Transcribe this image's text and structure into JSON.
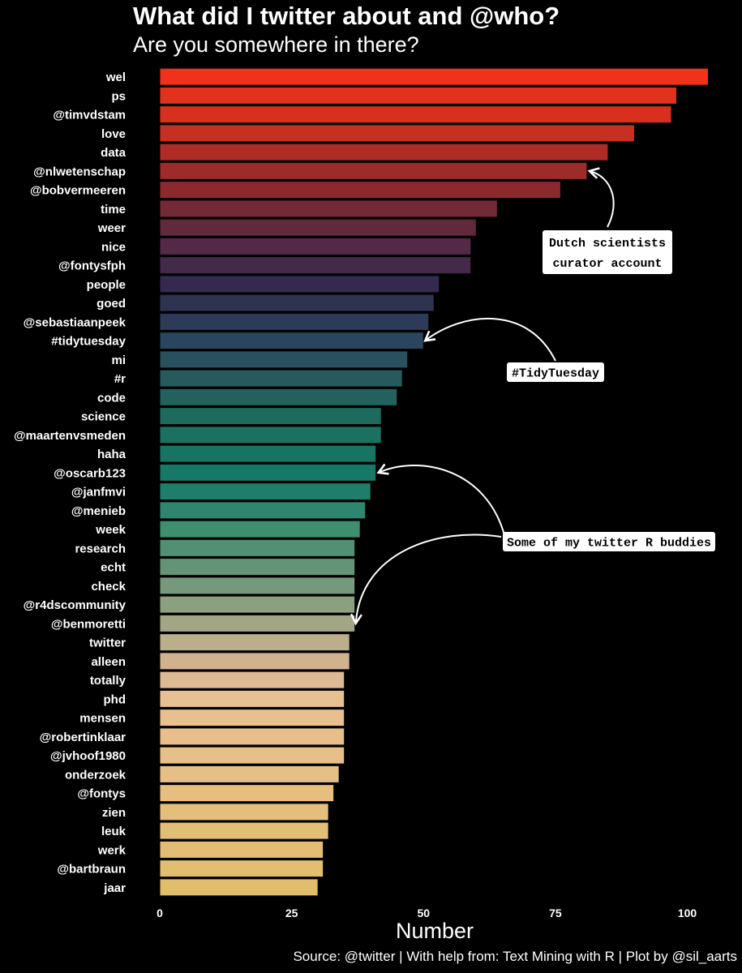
{
  "title": "What did I twitter about and @who?",
  "subtitle": "Are you somewhere in there?",
  "caption": "Source: @twitter | With help from: Text Mining with R | Plot by @sil_aarts",
  "chart_data": {
    "type": "bar",
    "orientation": "horizontal",
    "xlabel": "Number",
    "ylabel": "",
    "xlim": [
      0,
      104
    ],
    "xticks": [
      0,
      25,
      50,
      75,
      100
    ],
    "grid": false,
    "legend": "none",
    "background": "#000000",
    "categories": [
      "wel",
      "ps",
      "@timvdstam",
      "love",
      "data",
      "@nlwetenschap",
      "@bobvermeeren",
      "time",
      "weer",
      "nice",
      "@fontysfph",
      "people",
      "goed",
      "@sebastiaanpeek",
      "#tidytuesday",
      "mi",
      "#r",
      "code",
      "science",
      "@maartenvsmeden",
      "haha",
      "@oscarb123",
      "@janfmvi",
      "@menieb",
      "week",
      "research",
      "echt",
      "check",
      "@r4dscommunity",
      "@benmoretti",
      "twitter",
      "alleen",
      "totally",
      "phd",
      "mensen",
      "@robertinklaar",
      "@jvhoof1980",
      "onderzoek",
      "@fontys",
      "zien",
      "leuk",
      "werk",
      "@bartbraun",
      "jaar"
    ],
    "values": [
      104,
      98,
      97,
      90,
      85,
      81,
      76,
      64,
      60,
      59,
      59,
      53,
      52,
      51,
      50,
      47,
      46,
      45,
      42,
      42,
      41,
      41,
      40,
      39,
      38,
      37,
      37,
      37,
      37,
      37,
      36,
      36,
      35,
      35,
      35,
      35,
      35,
      34,
      33,
      32,
      32,
      31,
      31,
      30
    ],
    "colors": [
      "#F0321A",
      "#E2311C",
      "#D9301D",
      "#C62F22",
      "#AF2C26",
      "#9D2B2A",
      "#8A2A2E",
      "#732A36",
      "#60293C",
      "#542947",
      "#442A4A",
      "#342A50",
      "#2F3352",
      "#2C3B58",
      "#2A455E",
      "#28505E",
      "#265A5C",
      "#23625C",
      "#1F6A5E",
      "#1B7160",
      "#177462",
      "#167866",
      "#1F7E6A",
      "#2D866D",
      "#3E8F70",
      "#529073",
      "#649477",
      "#76997B",
      "#8CA07F",
      "#A2A684",
      "#BBAE8B",
      "#D1B28F",
      "#DDBA93",
      "#E7C194",
      "#E8BF8E",
      "#E8BF8B",
      "#E7C089",
      "#E6BF86",
      "#E5BE80",
      "#E4BF7B",
      "#E3BE77",
      "#E2BD73",
      "#E1BE70",
      "#E1BE6C"
    ],
    "annotations": [
      {
        "text": [
          "Dutch scientists",
          "curator account"
        ],
        "target": "@nlwetenschap"
      },
      {
        "text": [
          "#TidyTuesday"
        ],
        "target": "#tidytuesday"
      },
      {
        "text": [
          "Some of my twitter R buddies"
        ],
        "targets": [
          "@oscarb123",
          "@benmoretti"
        ]
      }
    ]
  }
}
